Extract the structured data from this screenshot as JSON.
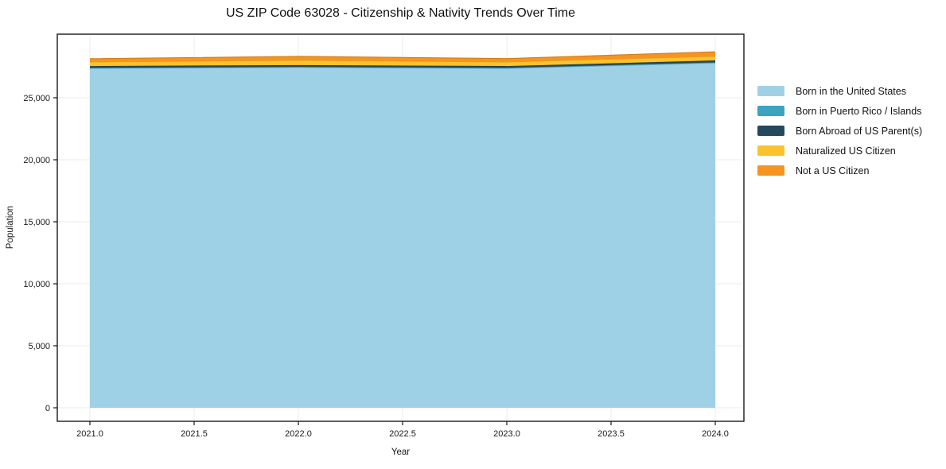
{
  "title": "US ZIP Code 63028 - Citizenship & Nativity Trends Over Time",
  "chart_data": {
    "type": "area",
    "stacked": true,
    "title": "US ZIP Code 63028 - Citizenship & Nativity Trends Over Time",
    "xlabel": "Year",
    "ylabel": "Population",
    "x": [
      2021,
      2022,
      2023,
      2024
    ],
    "series": [
      {
        "name": "Born in the United States",
        "color": "#9FD1E6",
        "values": [
          27360,
          27440,
          27360,
          27800
        ]
      },
      {
        "name": "Born in Puerto Rico / Islands",
        "color": "#3AA3BF",
        "values": [
          60,
          60,
          60,
          60
        ]
      },
      {
        "name": "Born Abroad of US Parent(s)",
        "color": "#24485C",
        "values": [
          140,
          140,
          140,
          150
        ]
      },
      {
        "name": "Naturalized US Citizen",
        "color": "#FCC22D",
        "values": [
          330,
          380,
          330,
          330
        ]
      },
      {
        "name": "Not a US Citizen",
        "color": "#F7941E",
        "values": [
          260,
          320,
          270,
          370
        ]
      }
    ],
    "x_ticks": [
      "2021.0",
      "2021.5",
      "2022.0",
      "2022.5",
      "2023.0",
      "2023.5",
      "2024.0"
    ],
    "x_tick_values": [
      2021.0,
      2021.5,
      2022.0,
      2022.5,
      2023.0,
      2023.5,
      2024.0
    ],
    "y_ticks": [
      "0",
      "5,000",
      "10,000",
      "15,000",
      "20,000",
      "25,000"
    ],
    "y_tick_values": [
      0,
      5000,
      10000,
      15000,
      20000,
      25000
    ],
    "xlim": [
      2020.84,
      2024.14
    ],
    "ylim": [
      -1100,
      30150
    ],
    "grid": true,
    "legend_position": "right",
    "grid_color": "#ebebeb",
    "axis_color": "#1a1a1a",
    "background_color": "#ffffff"
  }
}
